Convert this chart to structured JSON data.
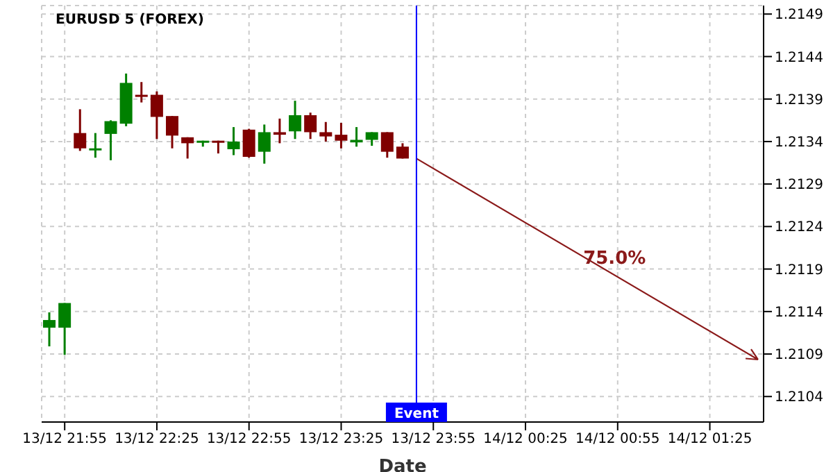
{
  "chart_data": {
    "type": "candlestick",
    "title": "EURUSD 5 (FOREX)",
    "xlabel": "Date",
    "categories": [
      null,
      "13/12 21:55",
      null,
      null,
      null,
      null,
      null,
      "13/12 22:25",
      null,
      null,
      null,
      null,
      null,
      "13/12 22:55",
      null,
      null,
      null,
      null,
      null,
      "13/12 23:25",
      null,
      null,
      null,
      null,
      null,
      "13/12 23:55",
      null,
      null,
      null,
      null,
      null,
      "14/12 00:25",
      null,
      null,
      null,
      null,
      null,
      "14/12 00:55",
      null,
      null,
      null,
      null,
      null,
      "14/12 01:25",
      null,
      null,
      null
    ],
    "ylim": [
      1.2101,
      1.215
    ],
    "yticks": [
      1.2104,
      1.2109,
      1.2114,
      1.2119,
      1.2124,
      1.2129,
      1.2134,
      1.2139,
      1.2144,
      1.2149
    ],
    "grid": true,
    "ohlc": [
      [
        1.21121,
        1.21139,
        1.21099,
        1.2113
      ],
      [
        1.21121,
        1.2115,
        1.21089,
        1.2115
      ],
      [
        1.2135,
        1.21378,
        1.21329,
        1.21332
      ],
      [
        1.21331,
        1.2135,
        1.21321,
        1.21332
      ],
      [
        1.21349,
        1.21365,
        1.21318,
        1.21364
      ],
      [
        1.21361,
        1.2142,
        1.21358,
        1.21409
      ],
      [
        1.21395,
        1.2141,
        1.21386,
        1.21394
      ],
      [
        1.21395,
        1.21399,
        1.21343,
        1.21369
      ],
      [
        1.2137,
        1.2137,
        1.21332,
        1.21347
      ],
      [
        1.21345,
        1.21345,
        1.2132,
        1.21338
      ],
      [
        1.2134,
        1.21341,
        1.21334,
        1.21341
      ],
      [
        1.21341,
        1.21341,
        1.21326,
        1.2134
      ],
      [
        1.21331,
        1.21357,
        1.21324,
        1.2134
      ],
      [
        1.21354,
        1.21355,
        1.21321,
        1.21322
      ],
      [
        1.21328,
        1.2136,
        1.21314,
        1.21351
      ],
      [
        1.21351,
        1.21367,
        1.21338,
        1.21348
      ],
      [
        1.21352,
        1.21388,
        1.21343,
        1.21371
      ],
      [
        1.21371,
        1.21374,
        1.21343,
        1.21351
      ],
      [
        1.21351,
        1.21363,
        1.2134,
        1.21346
      ],
      [
        1.21348,
        1.21362,
        1.21332,
        1.21341
      ],
      [
        1.21339,
        1.21357,
        1.21334,
        1.21342
      ],
      [
        1.21342,
        1.21351,
        1.21335,
        1.21351
      ],
      [
        1.21351,
        1.21351,
        1.21321,
        1.21328
      ],
      [
        1.21334,
        1.21338,
        1.2132,
        1.2132
      ],
      null,
      null,
      null,
      null,
      null,
      null,
      null,
      null,
      null,
      null,
      null,
      null,
      null,
      null,
      null,
      null,
      null,
      null,
      null,
      null,
      null,
      null,
      null
    ],
    "colors": [
      "#008000",
      "#008000",
      "#800000",
      "#008000",
      "#008000",
      "#008000",
      "#800000",
      "#800000",
      "#800000",
      "#800000",
      "#008000",
      "#800000",
      "#008000",
      "#800000",
      "#008000",
      "#800000",
      "#008000",
      "#800000",
      "#800000",
      "#800000",
      "#008000",
      "#008000",
      "#800000",
      "#800000",
      null,
      null,
      null,
      null,
      null,
      null,
      null,
      null,
      null,
      null,
      null,
      null,
      null,
      null,
      null,
      null,
      null,
      null,
      null,
      null,
      null,
      null,
      null
    ],
    "annotations": [
      "Event",
      "75.0%"
    ]
  }
}
